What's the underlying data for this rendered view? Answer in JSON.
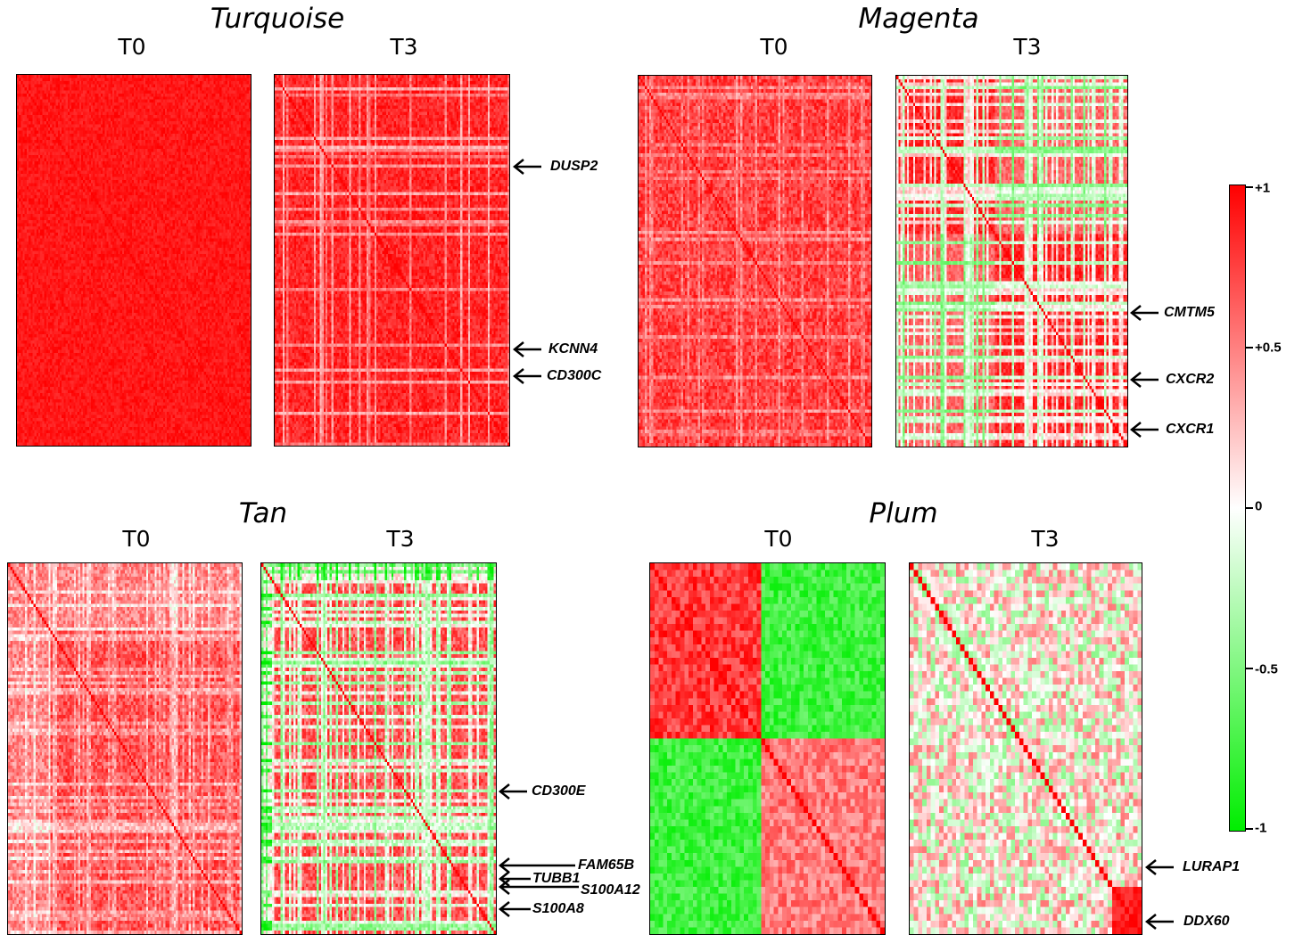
{
  "chart_data": [
    {
      "type": "heatmap",
      "title": "Turquoise",
      "panels": [
        {
          "label": "T0",
          "matrix_size": 120,
          "correlation_pattern": "uniformly high positive",
          "mean_correlation": 0.9
        },
        {
          "label": "T3",
          "matrix_size": 120,
          "correlation_pattern": "mostly positive with weak gene stripes",
          "mean_correlation": 0.75
        }
      ],
      "annotated_genes": [
        "DUSP2",
        "KCNN4",
        "CD300C"
      ]
    },
    {
      "type": "heatmap",
      "title": "Magenta",
      "panels": [
        {
          "label": "T0",
          "matrix_size": 110,
          "correlation_pattern": "mostly positive",
          "mean_correlation": 0.75
        },
        {
          "label": "T3",
          "matrix_size": 110,
          "correlation_pattern": "block structure with near-zero/negative stripes",
          "mean_correlation": 0.5
        }
      ],
      "annotated_genes": [
        "CMTM5",
        "CXCR2",
        "CXCR1"
      ]
    },
    {
      "type": "heatmap",
      "title": "Tan",
      "panels": [
        {
          "label": "T0",
          "matrix_size": 110,
          "correlation_pattern": "moderately positive",
          "mean_correlation": 0.65
        },
        {
          "label": "T3",
          "matrix_size": 110,
          "correlation_pattern": "mixed positive with negative stripes",
          "mean_correlation": 0.4
        }
      ],
      "annotated_genes": [
        "CD300E",
        "FAM65B",
        "TUBB1",
        "S100A12",
        "S100A8"
      ]
    },
    {
      "type": "heatmap",
      "title": "Plum",
      "panels": [
        {
          "label": "T0",
          "matrix_size": 55,
          "correlation_pattern": "two positive blocks, negative between blocks",
          "mean_correlation": 0.1
        },
        {
          "label": "T3",
          "matrix_size": 55,
          "correlation_pattern": "weak mixed with one positive block at the end",
          "mean_correlation": 0.05
        }
      ],
      "annotated_genes": [
        "LURAP1",
        "DDX60"
      ]
    }
  ],
  "colorbar": {
    "labels": [
      "+1",
      "+0.5",
      "0",
      "-0.5",
      "-1"
    ],
    "values": [
      1,
      0.5,
      0,
      -0.5,
      -1
    ],
    "range": [
      -1,
      1
    ],
    "colors": {
      "positive": "#ff0000",
      "zero": "#ffffff",
      "negative": "#00ee00"
    }
  }
}
